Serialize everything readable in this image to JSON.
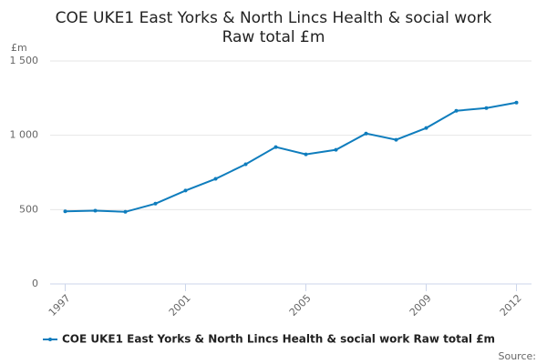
{
  "chart_data": {
    "type": "line",
    "title": [
      "COE UKE1 East Yorks & North Lincs Health & social work",
      "Raw total £m"
    ],
    "y_axis_label": "£m",
    "source_label": "Source:",
    "x": [
      1997,
      1998,
      1999,
      2000,
      2001,
      2002,
      2003,
      2004,
      2005,
      2006,
      2007,
      2008,
      2009,
      2010,
      2011,
      2012
    ],
    "series": [
      {
        "name": "COE UKE1 East Yorks & North Lincs Health & social work Raw total £m",
        "color": "#0f7dbd",
        "values": [
          488,
          493,
          485,
          540,
          628,
          707,
          805,
          921,
          872,
          902,
          1012,
          970,
          1049,
          1165,
          1183,
          1220
        ]
      }
    ],
    "xlim": [
      1996.5,
      2012.5
    ],
    "xticks": [
      1997,
      2001,
      2005,
      2009,
      2012
    ],
    "ylim": [
      0,
      1500
    ],
    "yticks": [
      0,
      500,
      {
        "value": 1000,
        "label": "1 000"
      },
      {
        "value": 1500,
        "label": "1 500"
      }
    ],
    "grid": true
  }
}
